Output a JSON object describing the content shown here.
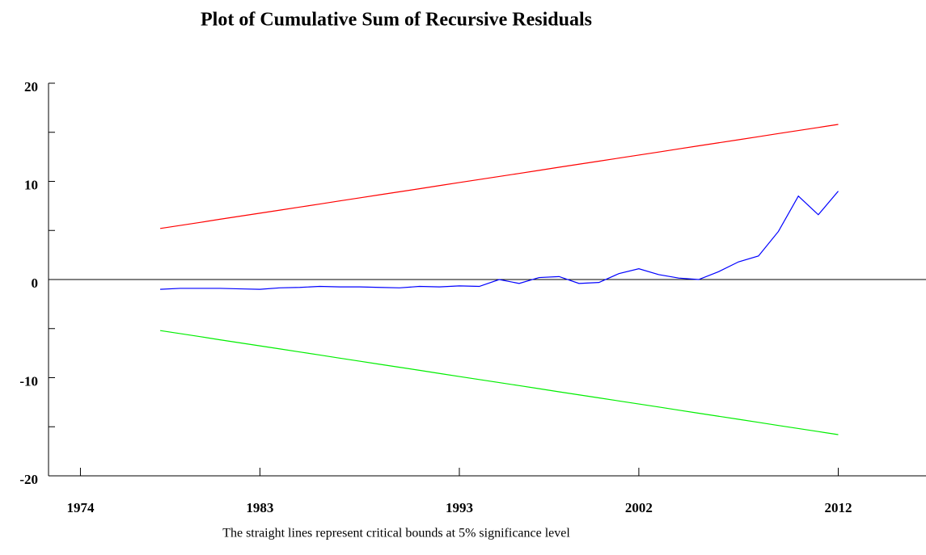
{
  "chart_data": {
    "type": "line",
    "title": "Plot of Cumulative Sum of Recursive Residuals",
    "caption": "The straight lines represent critical bounds at 5% significance level",
    "x": [
      1978,
      1979,
      1980,
      1981,
      1982,
      1983,
      1984,
      1985,
      1986,
      1987,
      1988,
      1989,
      1990,
      1991,
      1992,
      1993,
      1994,
      1995,
      1996,
      1997,
      1998,
      1999,
      2000,
      2001,
      2002,
      2003,
      2004,
      2005,
      2006,
      2007,
      2008,
      2009,
      2010,
      2011,
      2012
    ],
    "series": [
      {
        "color": "#ff0000",
        "values": [
          5.2,
          5.51,
          5.82,
          6.14,
          6.45,
          6.76,
          7.07,
          7.38,
          7.69,
          8.01,
          8.32,
          8.63,
          8.94,
          9.25,
          9.57,
          9.88,
          10.19,
          10.5,
          10.81,
          11.12,
          11.44,
          11.75,
          12.06,
          12.37,
          12.68,
          12.99,
          13.31,
          13.62,
          13.93,
          14.24,
          14.55,
          14.87,
          15.18,
          15.49,
          15.8
        ]
      },
      {
        "color": "#0000ff",
        "values": [
          -1.0,
          -0.9,
          -0.9,
          -0.9,
          -0.95,
          -1.0,
          -0.85,
          -0.8,
          -0.7,
          -0.75,
          -0.75,
          -0.8,
          -0.85,
          -0.7,
          -0.75,
          -0.65,
          -0.7,
          0.0,
          -0.4,
          0.2,
          0.3,
          -0.4,
          -0.3,
          0.6,
          1.1,
          0.5,
          0.15,
          0.0,
          0.8,
          1.8,
          2.4,
          4.9,
          8.5,
          6.6,
          9.0
        ]
      },
      {
        "color": "#00ee00",
        "values": [
          -5.2,
          -5.51,
          -5.82,
          -6.14,
          -6.45,
          -6.76,
          -7.07,
          -7.38,
          -7.69,
          -8.01,
          -8.32,
          -8.63,
          -8.94,
          -9.25,
          -9.57,
          -9.88,
          -10.19,
          -10.5,
          -10.81,
          -11.12,
          -11.44,
          -11.75,
          -12.06,
          -12.37,
          -12.68,
          -12.99,
          -13.31,
          -13.62,
          -13.93,
          -14.24,
          -14.55,
          -14.87,
          -15.18,
          -15.49,
          -15.8
        ]
      }
    ],
    "xlim": [
      1972.4,
      2016.4
    ],
    "xticks": [
      1974,
      1983,
      1993,
      2002,
      2012
    ],
    "ylim": [
      -20,
      20
    ],
    "yticks": [
      -20,
      -10,
      0,
      10,
      20
    ],
    "minor_yticks": [
      -15,
      -5,
      5,
      15
    ],
    "zero_line": true
  }
}
